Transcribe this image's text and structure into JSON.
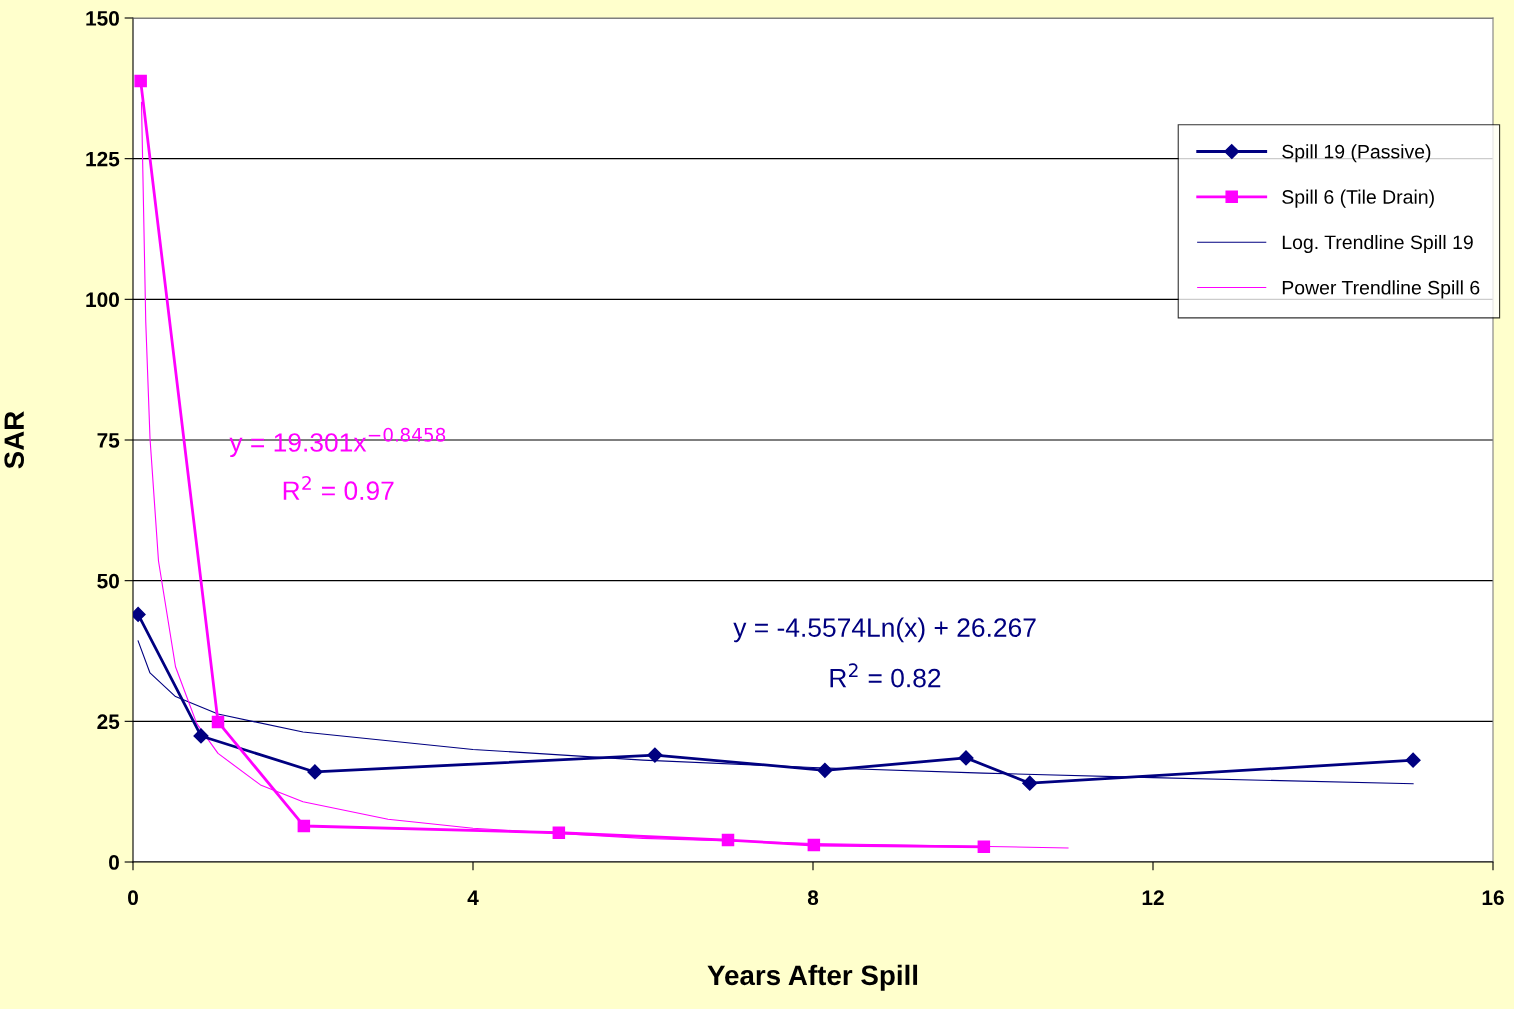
{
  "chart_data": {
    "type": "line",
    "xlabel": "Years After Spill",
    "ylabel": "SAR",
    "xlim": [
      0,
      16
    ],
    "xticks": [
      0,
      4,
      8,
      12,
      16
    ],
    "ylim": [
      0,
      150
    ],
    "yticks": [
      0,
      25,
      50,
      75,
      100,
      125,
      150
    ],
    "grid": "y",
    "legend": "top right",
    "series": [
      {
        "name": "Spill 19 (Passive)",
        "color": "#000080",
        "marker": "diamond",
        "x": [
          0.06,
          0.8,
          2.14,
          6.14,
          8.14,
          9.8,
          10.55,
          15.06
        ],
        "values": [
          44,
          22.4,
          16.0,
          19.0,
          16.3,
          18.5,
          14.0,
          18.1
        ]
      },
      {
        "name": "Spill 6 (Tile Drain)",
        "color": "#ff00ff",
        "marker": "square",
        "x": [
          0.09,
          1.0,
          2.01,
          5.01,
          7.0,
          8.01,
          10.01
        ],
        "values": [
          138.8,
          24.9,
          6.4,
          5.2,
          3.9,
          3.0,
          2.7
        ]
      },
      {
        "name": "Log. Trendline Spill 19",
        "color": "#000080",
        "marker": "none",
        "x": [
          0.06,
          0.2,
          0.5,
          1,
          2,
          4,
          6,
          8,
          10,
          12,
          15.06
        ],
        "values": [
          39.3,
          33.6,
          29.4,
          26.3,
          23.1,
          20.0,
          18.1,
          16.8,
          15.8,
          15.0,
          13.9
        ]
      },
      {
        "name": "Power Trendline Spill 6",
        "color": "#ff00ff",
        "marker": "none",
        "x": [
          0.1,
          0.15,
          0.2,
          0.3,
          0.5,
          0.75,
          1,
          1.5,
          2,
          3,
          4,
          6,
          8,
          11
        ],
        "values": [
          135,
          96,
          75.3,
          53.5,
          34.7,
          24.6,
          19.3,
          13.7,
          10.7,
          7.6,
          6.0,
          4.2,
          3.3,
          2.5
        ]
      }
    ],
    "annotations": [
      "y = 19.301x$^{−0.8458}$",
      "R$^{2}$ = 0.97",
      "y = -4.5574Ln(x) + 26.267",
      "R$^{2}$ = 0.82"
    ]
  }
}
